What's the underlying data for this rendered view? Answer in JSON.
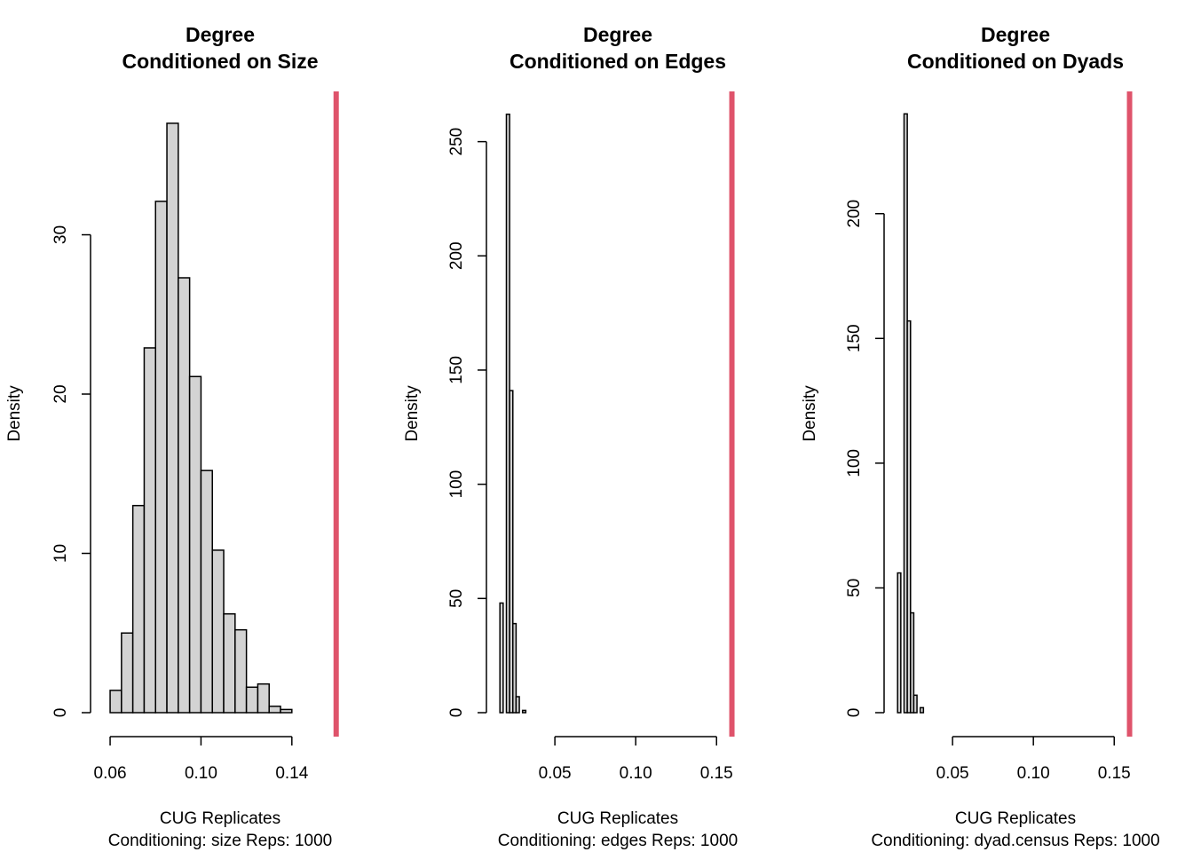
{
  "colors": {
    "bar_fill": "#d3d3d3",
    "bar_stroke": "#000000",
    "observed_line": "#df536b"
  },
  "chart_data": [
    {
      "type": "bar",
      "title": "Degree",
      "subtitle": "Conditioned on Size",
      "ylabel": "Density",
      "xlabel": "CUG Replicates",
      "sublabel": "Conditioning: size Reps: 1000",
      "xlim": [
        0.0549,
        0.16
      ],
      "ylim": [
        0,
        39
      ],
      "x_ticks": [
        {
          "value": 0.06,
          "label": "0.06"
        },
        {
          "value": 0.1,
          "label": "0.10"
        },
        {
          "value": 0.14,
          "label": "0.14"
        }
      ],
      "y_ticks": [
        {
          "value": 0,
          "label": "0"
        },
        {
          "value": 10,
          "label": "10"
        },
        {
          "value": 20,
          "label": "20"
        },
        {
          "value": 30,
          "label": "30"
        }
      ],
      "bin_width": 0.005,
      "bin_starts": [
        0.06,
        0.065,
        0.07,
        0.075,
        0.08,
        0.085,
        0.09,
        0.095,
        0.1,
        0.105,
        0.11,
        0.115,
        0.12,
        0.125,
        0.13,
        0.135
      ],
      "values": [
        1.4,
        5.0,
        13.0,
        22.9,
        32.1,
        37.0,
        27.3,
        21.1,
        15.2,
        10.2,
        6.2,
        5.2,
        1.6,
        1.8,
        0.4,
        0.2
      ],
      "observed": 0.1595
    },
    {
      "type": "bar",
      "title": "Degree",
      "subtitle": "Conditioned on Edges",
      "ylabel": "Density",
      "xlabel": "CUG Replicates",
      "sublabel": "Conditioning: edges Reps: 1000",
      "xlim": [
        0.0115,
        0.1625
      ],
      "ylim": [
        0,
        272
      ],
      "x_ticks": [
        {
          "value": 0.05,
          "label": "0.05"
        },
        {
          "value": 0.1,
          "label": "0.10"
        },
        {
          "value": 0.15,
          "label": "0.15"
        }
      ],
      "x_axis_from": 0.05,
      "y_ticks": [
        {
          "value": 0,
          "label": "0"
        },
        {
          "value": 50,
          "label": "50"
        },
        {
          "value": 100,
          "label": "100"
        },
        {
          "value": 150,
          "label": "150"
        },
        {
          "value": 200,
          "label": "200"
        },
        {
          "value": 250,
          "label": "250"
        }
      ],
      "bin_width": 0.002,
      "bin_starts": [
        0.016,
        0.018,
        0.02,
        0.022,
        0.024,
        0.026,
        0.028,
        0.03
      ],
      "values": [
        48,
        0,
        262,
        141,
        39,
        7,
        0,
        1
      ],
      "observed": 0.1595
    },
    {
      "type": "bar",
      "title": "Degree",
      "subtitle": "Conditioned on Dyads",
      "ylabel": "Density",
      "xlabel": "CUG Replicates",
      "sublabel": "Conditioning: dyad.census Reps: 1000",
      "xlim": [
        0.0115,
        0.1625
      ],
      "ylim": [
        0,
        249
      ],
      "x_ticks": [
        {
          "value": 0.05,
          "label": "0.05"
        },
        {
          "value": 0.1,
          "label": "0.10"
        },
        {
          "value": 0.15,
          "label": "0.15"
        }
      ],
      "x_axis_from": 0.05,
      "y_ticks": [
        {
          "value": 0,
          "label": "0"
        },
        {
          "value": 50,
          "label": "50"
        },
        {
          "value": 100,
          "label": "100"
        },
        {
          "value": 150,
          "label": "150"
        },
        {
          "value": 200,
          "label": "200"
        }
      ],
      "bin_width": 0.002,
      "bin_starts": [
        0.016,
        0.018,
        0.02,
        0.022,
        0.024,
        0.026,
        0.028,
        0.03
      ],
      "values": [
        56,
        0,
        240,
        157,
        40,
        7,
        0,
        2
      ],
      "observed": 0.1595
    }
  ]
}
